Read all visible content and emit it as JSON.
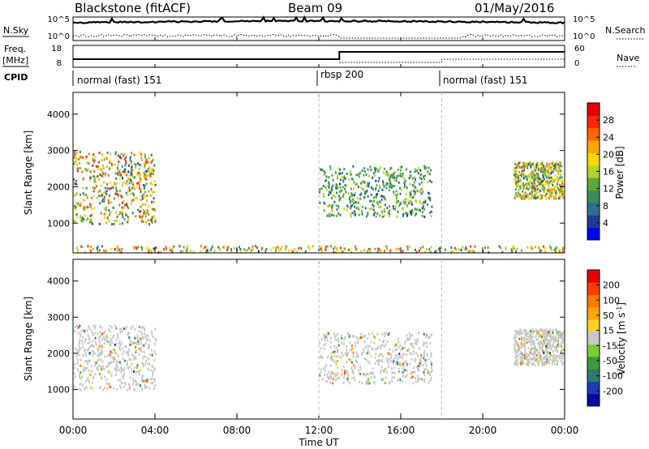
{
  "header": {
    "station": "Blackstone (fitACF)",
    "beam": "Beam 09",
    "date": "01/May/2016"
  },
  "noise_panel": {
    "left_label": "N.Sky",
    "left_ticks": [
      "10^5",
      "10^0"
    ],
    "right_label": "N.Search",
    "right_ticks": [
      "10^5",
      "10^0"
    ]
  },
  "freq_panel": {
    "left_label_1": "Freq.",
    "left_label_2": "[MHz]",
    "left_ticks": [
      "18",
      "8"
    ],
    "right_label": "Nave",
    "right_ticks": [
      "60",
      "0"
    ]
  },
  "cpid_panel": {
    "label": "CPID",
    "modes": [
      {
        "name": "normal (fast) 151",
        "start": "00:00"
      },
      {
        "name": "rbsp 200",
        "start": "12:00"
      },
      {
        "name": "normal (fast) 151",
        "start": "18:00"
      }
    ]
  },
  "x_axis": {
    "label": "Time UT",
    "ticks": [
      "00:00",
      "04:00",
      "08:00",
      "12:00",
      "16:00",
      "20:00",
      "00:00"
    ]
  },
  "colors": {
    "power_scale": [
      "#0000ff",
      "#1e3c96",
      "#2e6e8e",
      "#3c8c5a",
      "#5aaa3c",
      "#b4d22a",
      "#ffd700",
      "#ffa500",
      "#ff6400",
      "#ff2800",
      "#e60000"
    ],
    "velocity_scale": [
      "#0a0aa0",
      "#1e3cb4",
      "#2e7a6e",
      "#3c9c3c",
      "#7acd32",
      "#c8c8c8",
      "#ffd22a",
      "#ffa500",
      "#ff7800",
      "#ff3c00",
      "#e60000"
    ],
    "ground_scatter": "#c8c8c8"
  },
  "chart_data": [
    {
      "type": "heatmap",
      "title": "Power",
      "ylabel": "Slant Range [km]",
      "xlabel": "",
      "xlim": [
        "00:00",
        "24:00"
      ],
      "ylim": [
        180,
        4600
      ],
      "yticks": [
        1000,
        2000,
        3000,
        4000
      ],
      "colorbar": {
        "label": "Power [dB]",
        "ticks": [
          "28",
          "24",
          "20",
          "16",
          "12",
          "8",
          "4"
        ],
        "range": [
          0,
          30
        ]
      },
      "features": [
        {
          "name": "evening band",
          "hours": [
            0.0,
            4.0
          ],
          "range_km": [
            1000,
            3000
          ],
          "values": [
            4,
            28
          ]
        },
        {
          "name": "rbsp echoes",
          "hours": [
            12.0,
            17.5
          ],
          "range_km": [
            1200,
            2600
          ],
          "values": [
            4,
            16
          ]
        },
        {
          "name": "morning band",
          "hours": [
            21.5,
            24.0
          ],
          "range_km": [
            1700,
            2700
          ],
          "values": [
            4,
            24
          ]
        },
        {
          "name": "near range clutter",
          "hours": [
            0.0,
            24.0
          ],
          "range_km": [
            200,
            400
          ],
          "values": [
            4,
            28
          ]
        }
      ]
    },
    {
      "type": "heatmap",
      "title": "Velocity",
      "ylabel": "Slant Range [km]",
      "xlabel": "Time UT",
      "xlim": [
        "00:00",
        "24:00"
      ],
      "ylim": [
        180,
        4600
      ],
      "yticks": [
        1000,
        2000,
        3000,
        4000
      ],
      "colorbar": {
        "label": "Velocity [m s-1]",
        "ticks": [
          "200",
          "100",
          "50",
          "15",
          "-15",
          "-50",
          "-100",
          "-200"
        ],
        "range": [
          -250,
          250
        ]
      },
      "features": [
        {
          "name": "ground scatter band",
          "hours": [
            0.0,
            4.0
          ],
          "range_km": [
            1000,
            2800
          ],
          "values": [
            -15,
            15
          ]
        },
        {
          "name": "rbsp echoes",
          "hours": [
            12.0,
            17.5
          ],
          "range_km": [
            1200,
            2600
          ],
          "values": [
            -15,
            15
          ]
        },
        {
          "name": "morning band",
          "hours": [
            21.5,
            24.0
          ],
          "range_km": [
            1700,
            2700
          ],
          "values": [
            -15,
            15
          ]
        }
      ]
    }
  ]
}
